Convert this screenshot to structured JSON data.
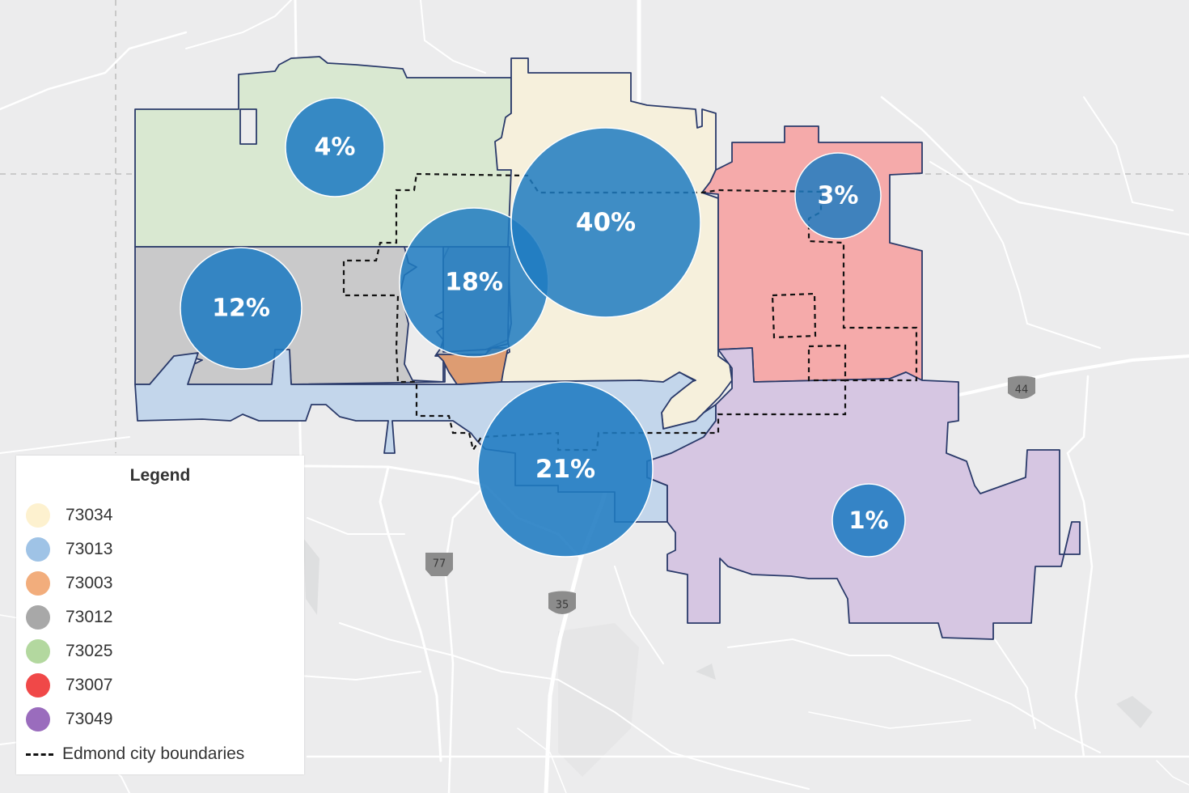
{
  "legend": {
    "title": "Legend",
    "items": [
      {
        "label": "73034",
        "color": "#fdf1cf"
      },
      {
        "label": "73013",
        "color": "#9fc3e6"
      },
      {
        "label": "73003",
        "color": "#f2ad7c"
      },
      {
        "label": "73012",
        "color": "#a8a8a8"
      },
      {
        "label": "73025",
        "color": "#b3d89f"
      },
      {
        "label": "73007",
        "color": "#f04848"
      },
      {
        "label": "73049",
        "color": "#9a6cbd"
      }
    ],
    "boundary_label": "Edmond city boundaries"
  },
  "zip_shares": [
    {
      "zip": "73025",
      "percent": "4%"
    },
    {
      "zip": "73034",
      "percent": "40%"
    },
    {
      "zip": "73007",
      "percent": "3%"
    },
    {
      "zip": "73012",
      "percent": "12%"
    },
    {
      "zip": "73003",
      "percent": "18%"
    },
    {
      "zip": "73013",
      "percent": "21%"
    },
    {
      "zip": "73049",
      "percent": "1%"
    }
  ],
  "highways": [
    {
      "name": "us-77-shield",
      "label": "77"
    },
    {
      "name": "i-35-shield",
      "label": "35"
    },
    {
      "name": "i-44-shield",
      "label": "44"
    }
  ],
  "colors": {
    "bubble": "#1f7bc1",
    "zip_outline": "#2a3a6a",
    "road": "#ffffff",
    "basemap": "#ececed"
  }
}
